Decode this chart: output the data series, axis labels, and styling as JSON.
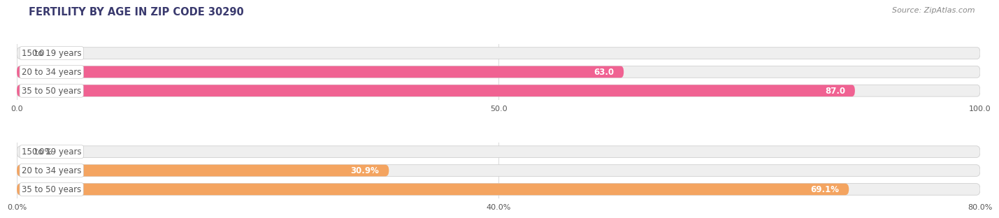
{
  "title": "FERTILITY BY AGE IN ZIP CODE 30290",
  "source_text": "Source: ZipAtlas.com",
  "chart1": {
    "categories": [
      "15 to 19 years",
      "20 to 34 years",
      "35 to 50 years"
    ],
    "values": [
      0.0,
      63.0,
      87.0
    ],
    "value_labels": [
      "0.0",
      "63.0",
      "87.0"
    ],
    "xlim": [
      0,
      100
    ],
    "xticks": [
      0.0,
      50.0,
      100.0
    ],
    "xtick_labels": [
      "0.0",
      "50.0",
      "100.0"
    ],
    "bar_color": "#f06292",
    "bar_bg_color": "#efefef"
  },
  "chart2": {
    "categories": [
      "15 to 19 years",
      "20 to 34 years",
      "35 to 50 years"
    ],
    "values": [
      0.0,
      30.9,
      69.1
    ],
    "value_labels": [
      "0.0%",
      "30.9%",
      "69.1%"
    ],
    "xlim": [
      0,
      80
    ],
    "xticks": [
      0.0,
      40.0,
      80.0
    ],
    "xtick_labels": [
      "0.0%",
      "40.0%",
      "80.0%"
    ],
    "bar_color": "#f4a460",
    "bar_bg_color": "#efefef"
  },
  "title_fontsize": 10.5,
  "label_fontsize": 8.5,
  "value_fontsize": 8.5,
  "tick_fontsize": 8,
  "source_fontsize": 8,
  "title_color": "#3a3a6e",
  "label_text_color": "#555555",
  "grid_color": "#dddddd",
  "bg_color": "#ffffff",
  "bar_height": 0.62
}
